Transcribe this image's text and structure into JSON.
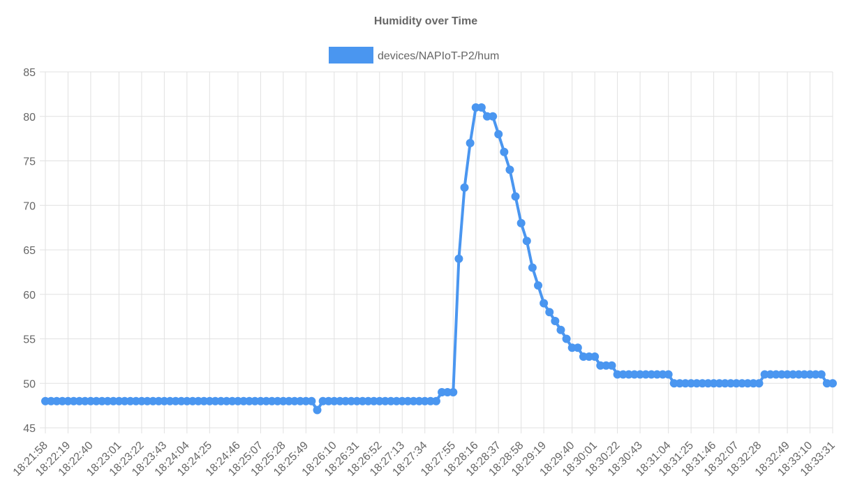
{
  "chart_data": {
    "type": "line",
    "title": "Humidity over Time",
    "xlabel": "",
    "ylabel": "",
    "ylim": [
      45,
      85
    ],
    "y_ticks": [
      45,
      50,
      55,
      60,
      65,
      70,
      75,
      80,
      85
    ],
    "grid": true,
    "legend_position": "top",
    "x_tick_labels": [
      "18:21:58",
      "18:22:19",
      "18:22:40",
      "18:23:01",
      "18:23:22",
      "18:23:43",
      "18:24:04",
      "18:24:25",
      "18:24:46",
      "18:25:07",
      "18:25:28",
      "18:25:49",
      "18:26:10",
      "18:26:31",
      "18:26:52",
      "18:27:13",
      "18:27:34",
      "18:27:55",
      "18:28:16",
      "18:28:37",
      "18:28:58",
      "18:29:19",
      "18:29:40",
      "18:30:01",
      "18:30:22",
      "18:30:43",
      "18:31:04",
      "18:31:25",
      "18:31:46",
      "18:32:07",
      "18:32:28",
      "18:32:49",
      "18:33:10",
      "18:33:31"
    ],
    "series": [
      {
        "name": "devices/NAPIoT-P2/hum",
        "color": "#4a96f0",
        "values": [
          48,
          48,
          48,
          48,
          48,
          48,
          48,
          48,
          48,
          48,
          48,
          48,
          48,
          48,
          48,
          48,
          48,
          48,
          48,
          48,
          48,
          48,
          48,
          48,
          48,
          48,
          48,
          48,
          48,
          48,
          48,
          48,
          48,
          48,
          48,
          48,
          48,
          48,
          48,
          48,
          48,
          48,
          48,
          48,
          48,
          48,
          48,
          48,
          47,
          48,
          48,
          48,
          48,
          48,
          48,
          48,
          48,
          48,
          48,
          48,
          48,
          48,
          48,
          48,
          48,
          48,
          48,
          48,
          48,
          48,
          49,
          49,
          49,
          64,
          72,
          77,
          81,
          81,
          80,
          80,
          78,
          76,
          74,
          71,
          68,
          66,
          63,
          61,
          59,
          58,
          57,
          56,
          55,
          54,
          54,
          53,
          53,
          53,
          52,
          52,
          52,
          51,
          51,
          51,
          51,
          51,
          51,
          51,
          51,
          51,
          51,
          50,
          50,
          50,
          50,
          50,
          50,
          50,
          50,
          50,
          50,
          50,
          50,
          50,
          50,
          50,
          50,
          51,
          51,
          51,
          51,
          51,
          51,
          51,
          51,
          51,
          51,
          51,
          50,
          50
        ]
      }
    ]
  }
}
